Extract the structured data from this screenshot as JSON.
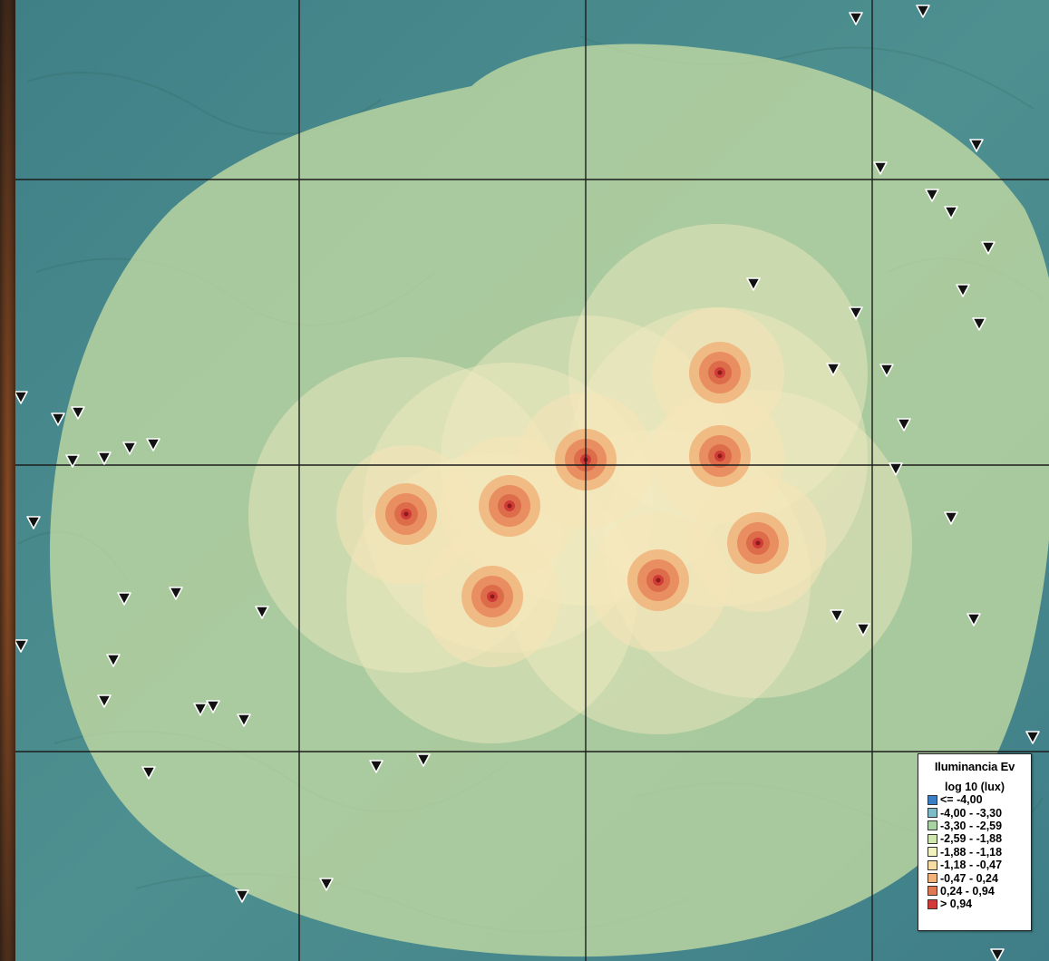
{
  "legend": {
    "title": "Iluminancia Ev",
    "subtitle": "log 10 (lux)",
    "classes": [
      {
        "label": "<= -4,00",
        "color": "#3a7fc4"
      },
      {
        "label": "-4,00 - -3,30",
        "color": "#7fbcc9"
      },
      {
        "label": "-3,30 - -2,59",
        "color": "#a8d3a2"
      },
      {
        "label": "-2,59 - -1,88",
        "color": "#cfe7ad"
      },
      {
        "label": "-1,88 - -1,18",
        "color": "#f2f2c0"
      },
      {
        "label": "-1,18 - -0,47",
        "color": "#f7dda3"
      },
      {
        "label": "-0,47 - 0,24",
        "color": "#f2b47a"
      },
      {
        "label": "0,24 - 0,94",
        "color": "#e07a55"
      },
      {
        "label": "> 0,94",
        "color": "#d33a3a"
      }
    ]
  },
  "colors": {
    "terrain_base": "#4a8a8a",
    "zone_light_green": "#c5dfa2",
    "zone_pale": "#f5edbd",
    "zone_orange": "#f0b37a",
    "zone_red": "#d34a3e",
    "grid_line": "#1c1c1c",
    "left_strip": "#3a2a1e"
  },
  "map": {
    "light_source_icon": "radial-light-source",
    "observer_icon": "inverted-triangle-marker"
  }
}
